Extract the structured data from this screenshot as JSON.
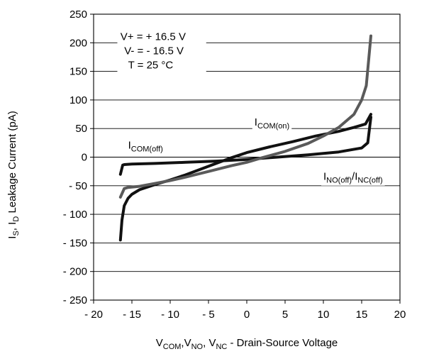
{
  "chart_data": {
    "type": "line",
    "title": "",
    "xlabel": {
      "parts": [
        {
          "t": "V",
          "sub": false
        },
        {
          "t": "COM",
          "sub": true
        },
        {
          "t": ",V",
          "sub": false
        },
        {
          "t": "NO",
          "sub": true
        },
        {
          "t": ", V",
          "sub": false
        },
        {
          "t": "NC",
          "sub": true
        },
        {
          "t": " - Drain-Source Voltage",
          "sub": false
        }
      ]
    },
    "ylabel": {
      "parts": [
        {
          "t": "I",
          "sub": false
        },
        {
          "t": "S",
          "sub": true
        },
        {
          "t": ", I",
          "sub": false
        },
        {
          "t": "D",
          "sub": true
        },
        {
          "t": "  Leakage Current (pA)",
          "sub": false
        }
      ]
    },
    "xlim": [
      -20,
      20
    ],
    "ylim": [
      -250,
      250
    ],
    "xticks": [
      -20,
      -15,
      -10,
      -5,
      0,
      5,
      10,
      15,
      20
    ],
    "yticks": [
      -250,
      -200,
      -150,
      -100,
      -50,
      0,
      50,
      100,
      150,
      200,
      250
    ],
    "xtick_labels": [
      "- 20",
      "- 15",
      "- 10",
      "- 5",
      "0",
      "5",
      "10",
      "15",
      "20"
    ],
    "ytick_labels": [
      "- 250",
      "- 200",
      "- 150",
      "- 100",
      "- 50",
      "0",
      "50",
      "100",
      "150",
      "200",
      "250"
    ],
    "grid": {
      "horizontal": true,
      "vertical": false
    },
    "conditions": [
      "V+ = + 16.5 V",
      "V- = - 16.5 V",
      "T = 25 °C"
    ],
    "colors": {
      "black": "#111111",
      "gray": "#5a5a5a",
      "grid": "#000000"
    },
    "series": [
      {
        "name_parts": [
          {
            "t": "I",
            "sub": false
          },
          {
            "t": "COM(off)",
            "sub": true
          }
        ],
        "label_anchor": {
          "x": -15.5,
          "y": 15
        },
        "color": "#111111",
        "x": [
          -16.5,
          -16.2,
          -16,
          -15,
          -12,
          -8,
          -4,
          0,
          4,
          8,
          12,
          15,
          15.8,
          16.2
        ],
        "y": [
          -30,
          -14,
          -13,
          -12,
          -11,
          -9,
          -7,
          -4,
          0,
          4,
          9,
          16,
          25,
          70
        ]
      },
      {
        "name_parts": [
          {
            "t": "I",
            "sub": false
          },
          {
            "t": "COM(on)",
            "sub": true
          }
        ],
        "label_anchor": {
          "x": 1,
          "y": 55
        },
        "color": "#111111",
        "x": [
          -16.5,
          -16.3,
          -16,
          -15.5,
          -15,
          -14,
          -12,
          -10,
          -8,
          -5,
          -2,
          0,
          3,
          6,
          9,
          12,
          14,
          15.5,
          16.2
        ],
        "y": [
          -145,
          -110,
          -85,
          -72,
          -65,
          -57,
          -48,
          -40,
          -31,
          -16,
          -1,
          8,
          18,
          27,
          37,
          45,
          52,
          58,
          75
        ]
      },
      {
        "name_parts": [
          {
            "t": "I",
            "sub": false
          },
          {
            "t": "NO(off)",
            "sub": true
          },
          {
            "t": "/I",
            "sub": false
          },
          {
            "t": "NC(off)",
            "sub": true
          }
        ],
        "label_anchor": {
          "x": 10,
          "y": -40
        },
        "color": "#5a5a5a",
        "x": [
          -16.5,
          -16,
          -15.5,
          -14,
          -12,
          -10,
          -8,
          -5,
          -2,
          0,
          2,
          5,
          8,
          10,
          12,
          14,
          15,
          15.6,
          16.2
        ],
        "y": [
          -70,
          -55,
          -53,
          -51,
          -46,
          -41,
          -35,
          -25,
          -15,
          -9,
          -1,
          10,
          24,
          37,
          52,
          75,
          100,
          125,
          212
        ]
      }
    ]
  }
}
